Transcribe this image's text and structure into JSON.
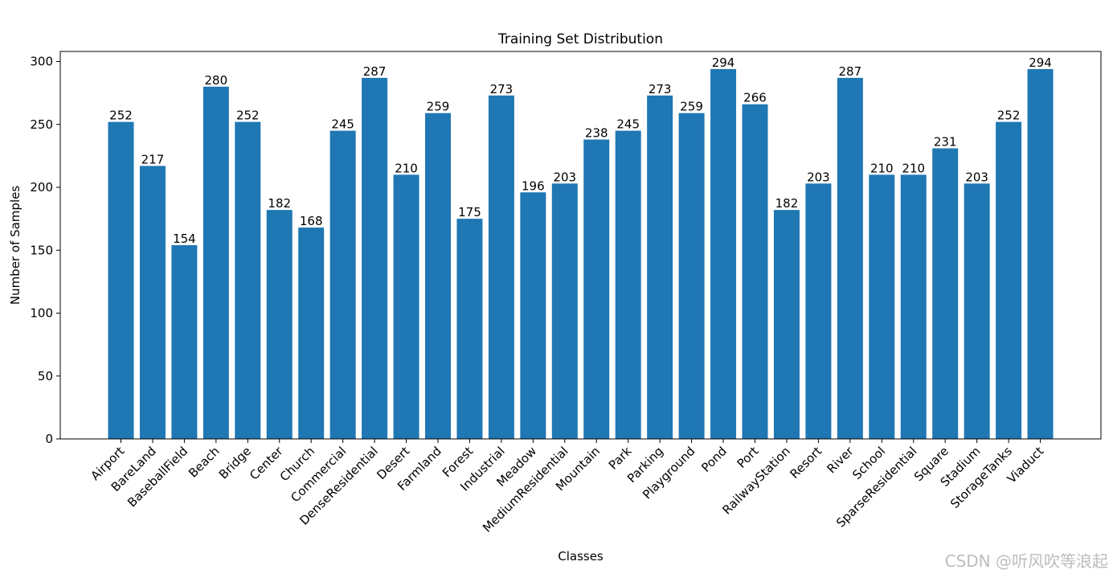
{
  "chart_data": {
    "type": "bar",
    "title": "Training Set Distribution",
    "xlabel": "Classes",
    "ylabel": "Number of Samples",
    "ylim": [
      0,
      308
    ],
    "yticks": [
      0,
      50,
      100,
      150,
      200,
      250,
      300
    ],
    "bar_color": "#1f77b4",
    "categories": [
      "Airport",
      "BareLand",
      "BaseballField",
      "Beach",
      "Bridge",
      "Center",
      "Church",
      "Commercial",
      "DenseResidential",
      "Desert",
      "Farmland",
      "Forest",
      "Industrial",
      "Meadow",
      "MediumResidential",
      "Mountain",
      "Park",
      "Parking",
      "Playground",
      "Pond",
      "Port",
      "RailwayStation",
      "Resort",
      "River",
      "School",
      "SparseResidential",
      "Square",
      "Stadium",
      "StorageTanks",
      "Viaduct"
    ],
    "values": [
      252,
      217,
      154,
      280,
      252,
      182,
      168,
      245,
      287,
      210,
      259,
      175,
      273,
      196,
      203,
      238,
      245,
      273,
      259,
      294,
      266,
      182,
      203,
      287,
      210,
      210,
      231,
      203,
      252,
      294
    ]
  },
  "watermark": "CSDN @听风吹等浪起"
}
